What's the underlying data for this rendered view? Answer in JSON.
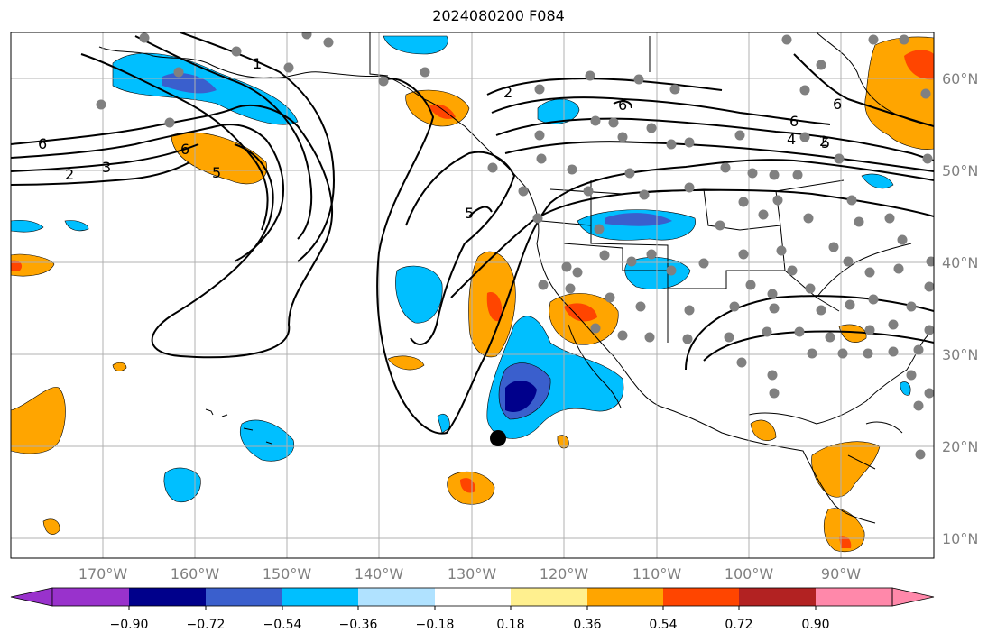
{
  "title": "2024080200 F084",
  "map": {
    "lon_labels": [
      "170°W",
      "160°W",
      "150°W",
      "140°W",
      "130°W",
      "120°W",
      "110°W",
      "100°W",
      "90°W"
    ],
    "lat_labels": [
      "60°N",
      "50°N",
      "40°N",
      "30°N",
      "20°N",
      "10°N"
    ],
    "contour_labels": [
      "1",
      "2",
      "2",
      "3",
      "5",
      "6",
      "6",
      "5",
      "2",
      "6",
      "6",
      "5",
      "6",
      "4"
    ]
  },
  "colorbar": {
    "ticks": [
      "−0.90",
      "−0.72",
      "−0.54",
      "−0.36",
      "−0.18",
      "0.18",
      "0.36",
      "0.54",
      "0.72",
      "0.90"
    ],
    "colors": [
      "#9932cc",
      "#00008b",
      "#3a5fcd",
      "#00bfff",
      "#b0e2ff",
      "#ffffff",
      "#fff08f",
      "#ffa500",
      "#ff4500",
      "#b22222",
      "#ff88aa"
    ]
  }
}
